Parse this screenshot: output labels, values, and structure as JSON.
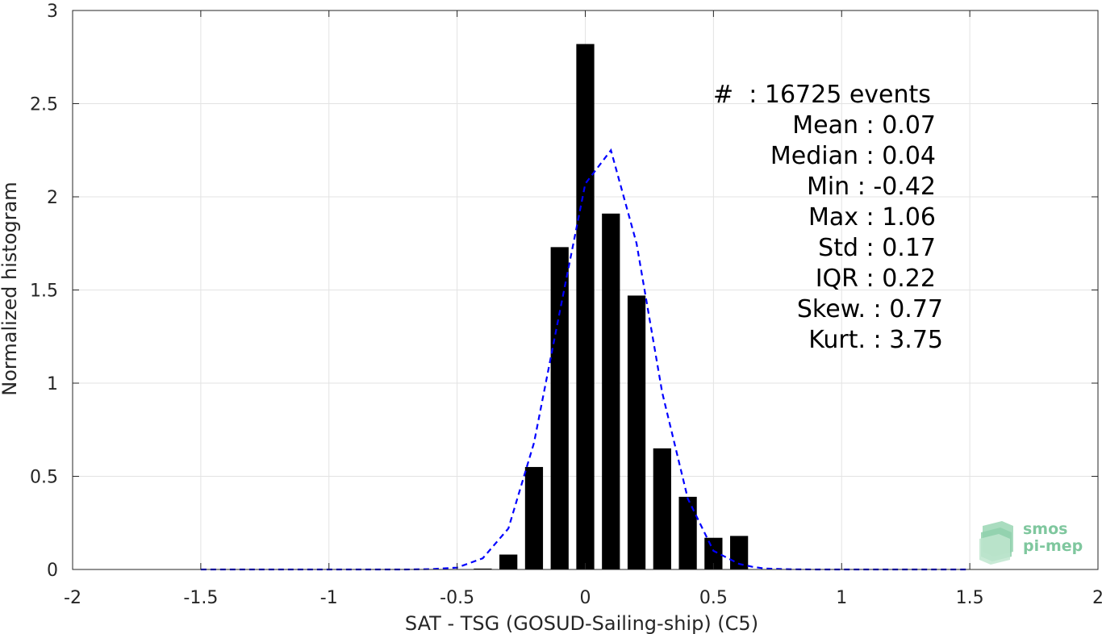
{
  "chart_data": {
    "type": "bar",
    "xlabel": "SAT - TSG (GOSUD-Sailing-ship) (C5)",
    "ylabel": "Normalized histogram",
    "xlim": [
      -2,
      2
    ],
    "ylim": [
      0,
      3
    ],
    "xticks": [
      -2,
      -1.5,
      -1,
      -0.5,
      0,
      0.5,
      1,
      1.5,
      2
    ],
    "xtick_labels": [
      "-2",
      "-1.5",
      "-1",
      "-0.5",
      "0",
      "0.5",
      "1",
      "1.5",
      "2"
    ],
    "yticks": [
      0,
      0.5,
      1,
      1.5,
      2,
      2.5,
      3
    ],
    "ytick_labels": [
      "0",
      "0.5",
      "1",
      "1.5",
      "2",
      "2.5",
      "3"
    ],
    "grid": true,
    "bar_color": "#000000",
    "bars": {
      "x": [
        -0.4,
        -0.3,
        -0.2,
        -0.1,
        0.0,
        0.1,
        0.2,
        0.3,
        0.4,
        0.5,
        0.6
      ],
      "values": [
        0.005,
        0.08,
        0.55,
        1.73,
        2.82,
        1.91,
        1.47,
        0.65,
        0.39,
        0.17,
        0.18
      ]
    },
    "fit_line": {
      "style": "dashed",
      "color": "#0000ff",
      "x": [
        -1.5,
        -1.4,
        -1.3,
        -1.2,
        -1.1,
        -1.0,
        -0.9,
        -0.8,
        -0.7,
        -0.6,
        -0.5,
        -0.4,
        -0.3,
        -0.2,
        -0.1,
        0.0,
        0.1,
        0.2,
        0.3,
        0.4,
        0.5,
        0.6,
        0.65,
        0.7,
        0.8,
        0.9,
        1.0,
        1.1,
        1.2,
        1.3,
        1.4,
        1.5
      ],
      "y": [
        0,
        0,
        0,
        0,
        0,
        0,
        0,
        0,
        0,
        0.002,
        0.01,
        0.06,
        0.22,
        0.68,
        1.38,
        2.07,
        2.25,
        1.75,
        0.95,
        0.38,
        0.1,
        0.03,
        0.015,
        0.005,
        0.001,
        0,
        0,
        0,
        0,
        0,
        0,
        0
      ]
    },
    "annotations": [
      "#  : 16725 events",
      "Mean : 0.07",
      "Median : 0.04",
      "Min : -0.42",
      "Max : 1.06",
      "Std : 0.17",
      "IQR : 0.22",
      "Skew. : 0.77",
      "Kurt. : 3.75"
    ]
  },
  "logo": {
    "line1": "smos",
    "line2": "pi-mep",
    "color": "#7fc79e"
  }
}
